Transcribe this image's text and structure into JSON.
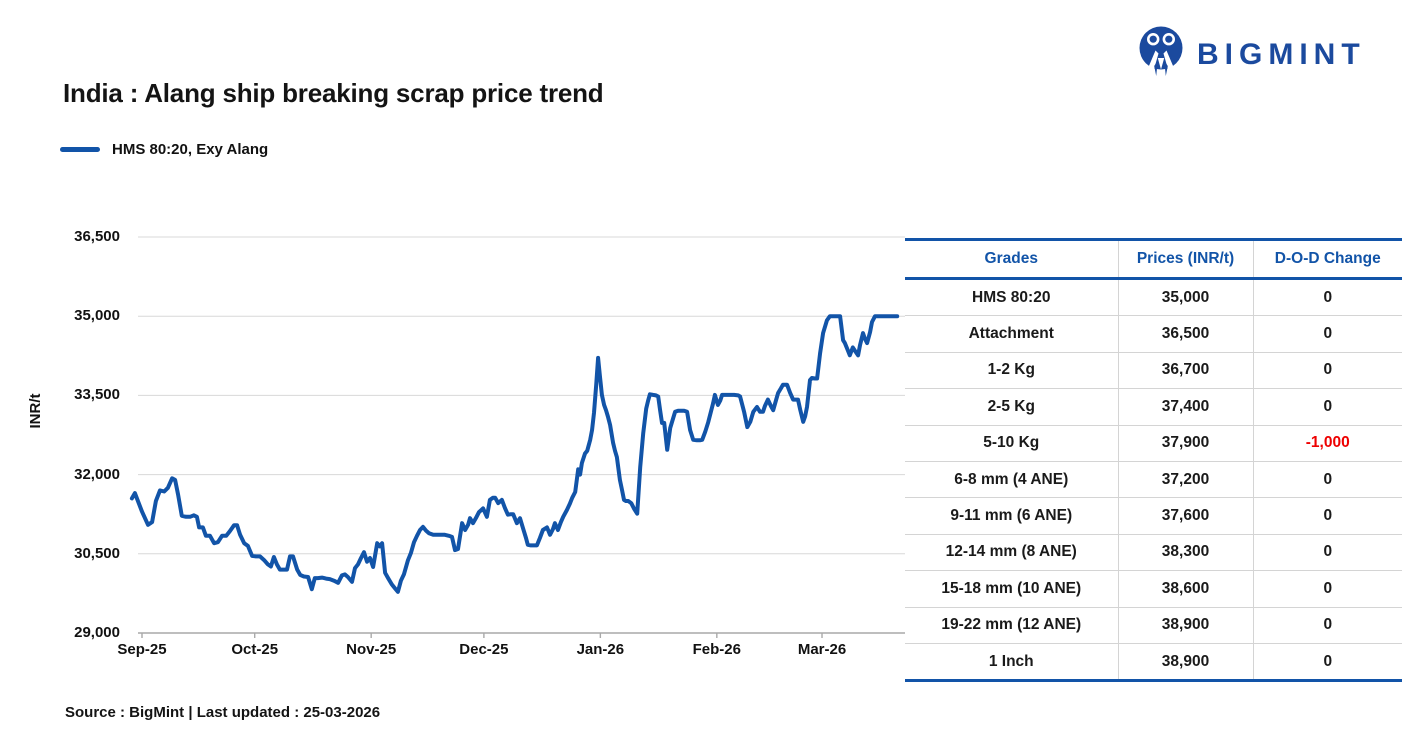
{
  "logo": {
    "text": "BIGMINT",
    "color": "#1b4a9e",
    "icon": "bigmint-people-icon"
  },
  "title": "India : Alang ship breaking scrap price trend",
  "legend": {
    "label": "HMS 80:20, Exy Alang",
    "swatch_color": "#1254a8"
  },
  "source_note": "Source : BigMint | Last updated : 25-03-2026",
  "colors": {
    "accent_blue": "#1254a8",
    "logo_blue": "#1b4a9e",
    "negative_red": "#ee0000",
    "gridline": "#d8d8d8",
    "axis_line": "#a9a9a9",
    "row_divider": "#d4d4d4"
  },
  "chart_data": {
    "type": "line",
    "title": "India : Alang ship breaking scrap price trend",
    "ylabel": "INR/t",
    "xlabel": "",
    "grid": "horizontal",
    "legend_position": "top-left",
    "ylim": [
      29000,
      36500
    ],
    "y_ticks": [
      29000,
      30500,
      32000,
      33500,
      35000,
      36500
    ],
    "y_tick_labels": [
      "29,000",
      "30,500",
      "32,000",
      "33,500",
      "35,000",
      "36,500"
    ],
    "x_tick_labels": [
      "Sep-25",
      "Oct-25",
      "Nov-25",
      "Dec-25",
      "Jan-26",
      "Feb-26",
      "Mar-26"
    ],
    "x_tick_days": [
      0,
      30,
      61,
      91,
      122,
      153,
      181
    ],
    "xlim_days": [
      -4,
      203
    ],
    "series": [
      {
        "name": "HMS 80:20, Exy Alang",
        "color": "#1254a8",
        "points": [
          [
            -2.7,
            31550
          ],
          [
            -1.9,
            31650
          ],
          [
            0,
            31300
          ],
          [
            1.6,
            31050
          ],
          [
            2.7,
            31100
          ],
          [
            3.7,
            31500
          ],
          [
            4.8,
            31700
          ],
          [
            5.9,
            31680
          ],
          [
            6.9,
            31750
          ],
          [
            8,
            31930
          ],
          [
            8.8,
            31900
          ],
          [
            9.6,
            31620
          ],
          [
            10.6,
            31220
          ],
          [
            11.7,
            31200
          ],
          [
            12.8,
            31200
          ],
          [
            13.8,
            31230
          ],
          [
            14.6,
            31200
          ],
          [
            15.2,
            31000
          ],
          [
            16.2,
            31000
          ],
          [
            17,
            30840
          ],
          [
            18.1,
            30840
          ],
          [
            19.2,
            30700
          ],
          [
            20.2,
            30720
          ],
          [
            21.3,
            30840
          ],
          [
            22.4,
            30840
          ],
          [
            23.4,
            30930
          ],
          [
            24.5,
            31040
          ],
          [
            25.3,
            31040
          ],
          [
            26.1,
            30860
          ],
          [
            27.2,
            30700
          ],
          [
            28.2,
            30650
          ],
          [
            29.3,
            30460
          ],
          [
            30.3,
            30450
          ],
          [
            31.4,
            30450
          ],
          [
            32.5,
            30380
          ],
          [
            33.5,
            30300
          ],
          [
            34.3,
            30260
          ],
          [
            35.1,
            30440
          ],
          [
            35.9,
            30300
          ],
          [
            36.7,
            30200
          ],
          [
            37.8,
            30200
          ],
          [
            38.6,
            30200
          ],
          [
            39.4,
            30450
          ],
          [
            40.2,
            30450
          ],
          [
            41.3,
            30200
          ],
          [
            42.1,
            30100
          ],
          [
            43.1,
            30070
          ],
          [
            44.2,
            30060
          ],
          [
            45.2,
            29830
          ],
          [
            46,
            30040
          ],
          [
            46.8,
            30040
          ],
          [
            47.9,
            30050
          ],
          [
            49,
            30030
          ],
          [
            50,
            30020
          ],
          [
            51.1,
            29990
          ],
          [
            52.2,
            29950
          ],
          [
            53.2,
            30090
          ],
          [
            54,
            30110
          ],
          [
            54.8,
            30060
          ],
          [
            55.9,
            29970
          ],
          [
            56.7,
            30230
          ],
          [
            57.5,
            30300
          ],
          [
            58.3,
            30420
          ],
          [
            59.1,
            30530
          ],
          [
            59.9,
            30350
          ],
          [
            60.7,
            30420
          ],
          [
            61.5,
            30250
          ],
          [
            62.6,
            30700
          ],
          [
            63.3,
            30640
          ],
          [
            63.9,
            30700
          ],
          [
            64.7,
            30140
          ],
          [
            65.5,
            30040
          ],
          [
            66.5,
            29920
          ],
          [
            67.3,
            29850
          ],
          [
            68.1,
            29780
          ],
          [
            68.9,
            29990
          ],
          [
            69.7,
            30110
          ],
          [
            70.8,
            30380
          ],
          [
            71.6,
            30520
          ],
          [
            72.4,
            30720
          ],
          [
            73.2,
            30840
          ],
          [
            74,
            30950
          ],
          [
            74.8,
            31010
          ],
          [
            75.6,
            30940
          ],
          [
            76.4,
            30890
          ],
          [
            77.5,
            30860
          ],
          [
            78.5,
            30860
          ],
          [
            79.6,
            30860
          ],
          [
            80.6,
            30860
          ],
          [
            81.7,
            30840
          ],
          [
            82.5,
            30820
          ],
          [
            83.3,
            30570
          ],
          [
            84.1,
            30590
          ],
          [
            85.2,
            31080
          ],
          [
            86,
            30950
          ],
          [
            86.8,
            31050
          ],
          [
            87.3,
            31175
          ],
          [
            88.1,
            31080
          ],
          [
            88.9,
            31180
          ],
          [
            89.7,
            31290
          ],
          [
            90.8,
            31360
          ],
          [
            91.8,
            31200
          ],
          [
            92.6,
            31520
          ],
          [
            93.4,
            31560
          ],
          [
            94,
            31560
          ],
          [
            94.8,
            31460
          ],
          [
            95.8,
            31520
          ],
          [
            96.6,
            31370
          ],
          [
            97.4,
            31240
          ],
          [
            98.2,
            31250
          ],
          [
            98.8,
            31250
          ],
          [
            99.8,
            31080
          ],
          [
            100.6,
            31175
          ],
          [
            101.4,
            30985
          ],
          [
            102.2,
            30800
          ],
          [
            102.7,
            30670
          ],
          [
            103.5,
            30660
          ],
          [
            104.3,
            30660
          ],
          [
            105.1,
            30660
          ],
          [
            105.9,
            30800
          ],
          [
            106.7,
            30950
          ],
          [
            107.8,
            31000
          ],
          [
            108.6,
            30860
          ],
          [
            109.4,
            30970
          ],
          [
            109.9,
            31080
          ],
          [
            110.7,
            30950
          ],
          [
            111.5,
            31100
          ],
          [
            112.1,
            31200
          ],
          [
            113.1,
            31330
          ],
          [
            113.9,
            31450
          ],
          [
            114.5,
            31560
          ],
          [
            115.3,
            31670
          ],
          [
            116.1,
            32100
          ],
          [
            116.6,
            32000
          ],
          [
            117.1,
            32220
          ],
          [
            117.9,
            32400
          ],
          [
            118.5,
            32450
          ],
          [
            119.3,
            32660
          ],
          [
            119.8,
            32850
          ],
          [
            120.3,
            33170
          ],
          [
            120.9,
            33700
          ],
          [
            121.4,
            34210
          ],
          [
            121.9,
            33850
          ],
          [
            122.4,
            33510
          ],
          [
            123,
            33320
          ],
          [
            123.5,
            33220
          ],
          [
            124,
            33100
          ],
          [
            124.6,
            32940
          ],
          [
            125.4,
            32600
          ],
          [
            125.9,
            32450
          ],
          [
            126.4,
            32330
          ],
          [
            127.2,
            31900
          ],
          [
            127.8,
            31700
          ],
          [
            128.3,
            31520
          ],
          [
            128.8,
            31500
          ],
          [
            129.4,
            31500
          ],
          [
            130.2,
            31460
          ],
          [
            131,
            31350
          ],
          [
            131.8,
            31260
          ],
          [
            132.6,
            32140
          ],
          [
            133.4,
            32780
          ],
          [
            134.2,
            33250
          ],
          [
            134.7,
            33400
          ],
          [
            135.2,
            33520
          ],
          [
            136,
            33510
          ],
          [
            136.8,
            33500
          ],
          [
            137.4,
            33480
          ],
          [
            137.9,
            33220
          ],
          [
            138.4,
            32980
          ],
          [
            139,
            32980
          ],
          [
            139.8,
            32470
          ],
          [
            140.6,
            32880
          ],
          [
            141.4,
            33070
          ],
          [
            141.9,
            33190
          ],
          [
            142.7,
            33210
          ],
          [
            143.5,
            33210
          ],
          [
            144.3,
            33210
          ],
          [
            145.1,
            33190
          ],
          [
            145.9,
            32845
          ],
          [
            146.7,
            32660
          ],
          [
            147.7,
            32650
          ],
          [
            148.5,
            32650
          ],
          [
            149.1,
            32660
          ],
          [
            149.9,
            32810
          ],
          [
            150.7,
            32990
          ],
          [
            151.2,
            33130
          ],
          [
            152,
            33350
          ],
          [
            152.5,
            33510
          ],
          [
            153.3,
            33320
          ],
          [
            153.9,
            33400
          ],
          [
            154.4,
            33510
          ],
          [
            155.5,
            33510
          ],
          [
            156.5,
            33510
          ],
          [
            157.6,
            33510
          ],
          [
            158.7,
            33500
          ],
          [
            159.2,
            33480
          ],
          [
            160.3,
            33180
          ],
          [
            161.1,
            32900
          ],
          [
            161.9,
            33000
          ],
          [
            162.7,
            33190
          ],
          [
            163.7,
            33280
          ],
          [
            164.5,
            33190
          ],
          [
            165.3,
            33190
          ],
          [
            165.8,
            33300
          ],
          [
            166.6,
            33420
          ],
          [
            167.4,
            33300
          ],
          [
            168,
            33220
          ],
          [
            168.8,
            33420
          ],
          [
            169.3,
            33545
          ],
          [
            170.1,
            33640
          ],
          [
            170.6,
            33700
          ],
          [
            171.7,
            33700
          ],
          [
            172.5,
            33550
          ],
          [
            173.3,
            33420
          ],
          [
            174.1,
            33420
          ],
          [
            174.6,
            33420
          ],
          [
            175.2,
            33230
          ],
          [
            176,
            33000
          ],
          [
            176.5,
            33100
          ],
          [
            177,
            33280
          ],
          [
            177.8,
            33790
          ],
          [
            178.3,
            33830
          ],
          [
            179.1,
            33820
          ],
          [
            179.7,
            33820
          ],
          [
            180.5,
            34300
          ],
          [
            181.3,
            34680
          ],
          [
            182.3,
            34920
          ],
          [
            183.1,
            35000
          ],
          [
            183.9,
            35000
          ],
          [
            184.7,
            35000
          ],
          [
            185.8,
            35000
          ],
          [
            186.6,
            34545
          ],
          [
            187.1,
            34490
          ],
          [
            187.9,
            34350
          ],
          [
            188.4,
            34260
          ],
          [
            189.2,
            34410
          ],
          [
            189.8,
            34340
          ],
          [
            190.6,
            34260
          ],
          [
            191.1,
            34450
          ],
          [
            191.9,
            34680
          ],
          [
            192.4,
            34580
          ],
          [
            193,
            34490
          ],
          [
            193.8,
            34700
          ],
          [
            194.3,
            34890
          ],
          [
            195.1,
            35000
          ],
          [
            196.4,
            35000
          ],
          [
            197.8,
            35000
          ],
          [
            199.1,
            35000
          ],
          [
            200.4,
            35000
          ],
          [
            201,
            35000
          ]
        ]
      }
    ]
  },
  "table": {
    "headers": [
      "Grades",
      "Prices (INR/t)",
      "D-O-D Change"
    ],
    "rows": [
      {
        "grade": "HMS 80:20",
        "price": "35,000",
        "change": "0"
      },
      {
        "grade": "Attachment",
        "price": "36,500",
        "change": "0"
      },
      {
        "grade": "1-2 Kg",
        "price": "36,700",
        "change": "0"
      },
      {
        "grade": "2-5 Kg",
        "price": "37,400",
        "change": "0"
      },
      {
        "grade": "5-10 Kg",
        "price": "37,900",
        "change": "-1,000"
      },
      {
        "grade": "6-8 mm (4 ANE)",
        "price": "37,200",
        "change": "0"
      },
      {
        "grade": "9-11 mm (6 ANE)",
        "price": "37,600",
        "change": "0"
      },
      {
        "grade": "12-14 mm (8 ANE)",
        "price": "38,300",
        "change": "0"
      },
      {
        "grade": "15-18 mm (10 ANE)",
        "price": "38,600",
        "change": "0"
      },
      {
        "grade": "19-22 mm (12 ANE)",
        "price": "38,900",
        "change": "0"
      },
      {
        "grade": "1 Inch",
        "price": "38,900",
        "change": "0"
      }
    ]
  }
}
